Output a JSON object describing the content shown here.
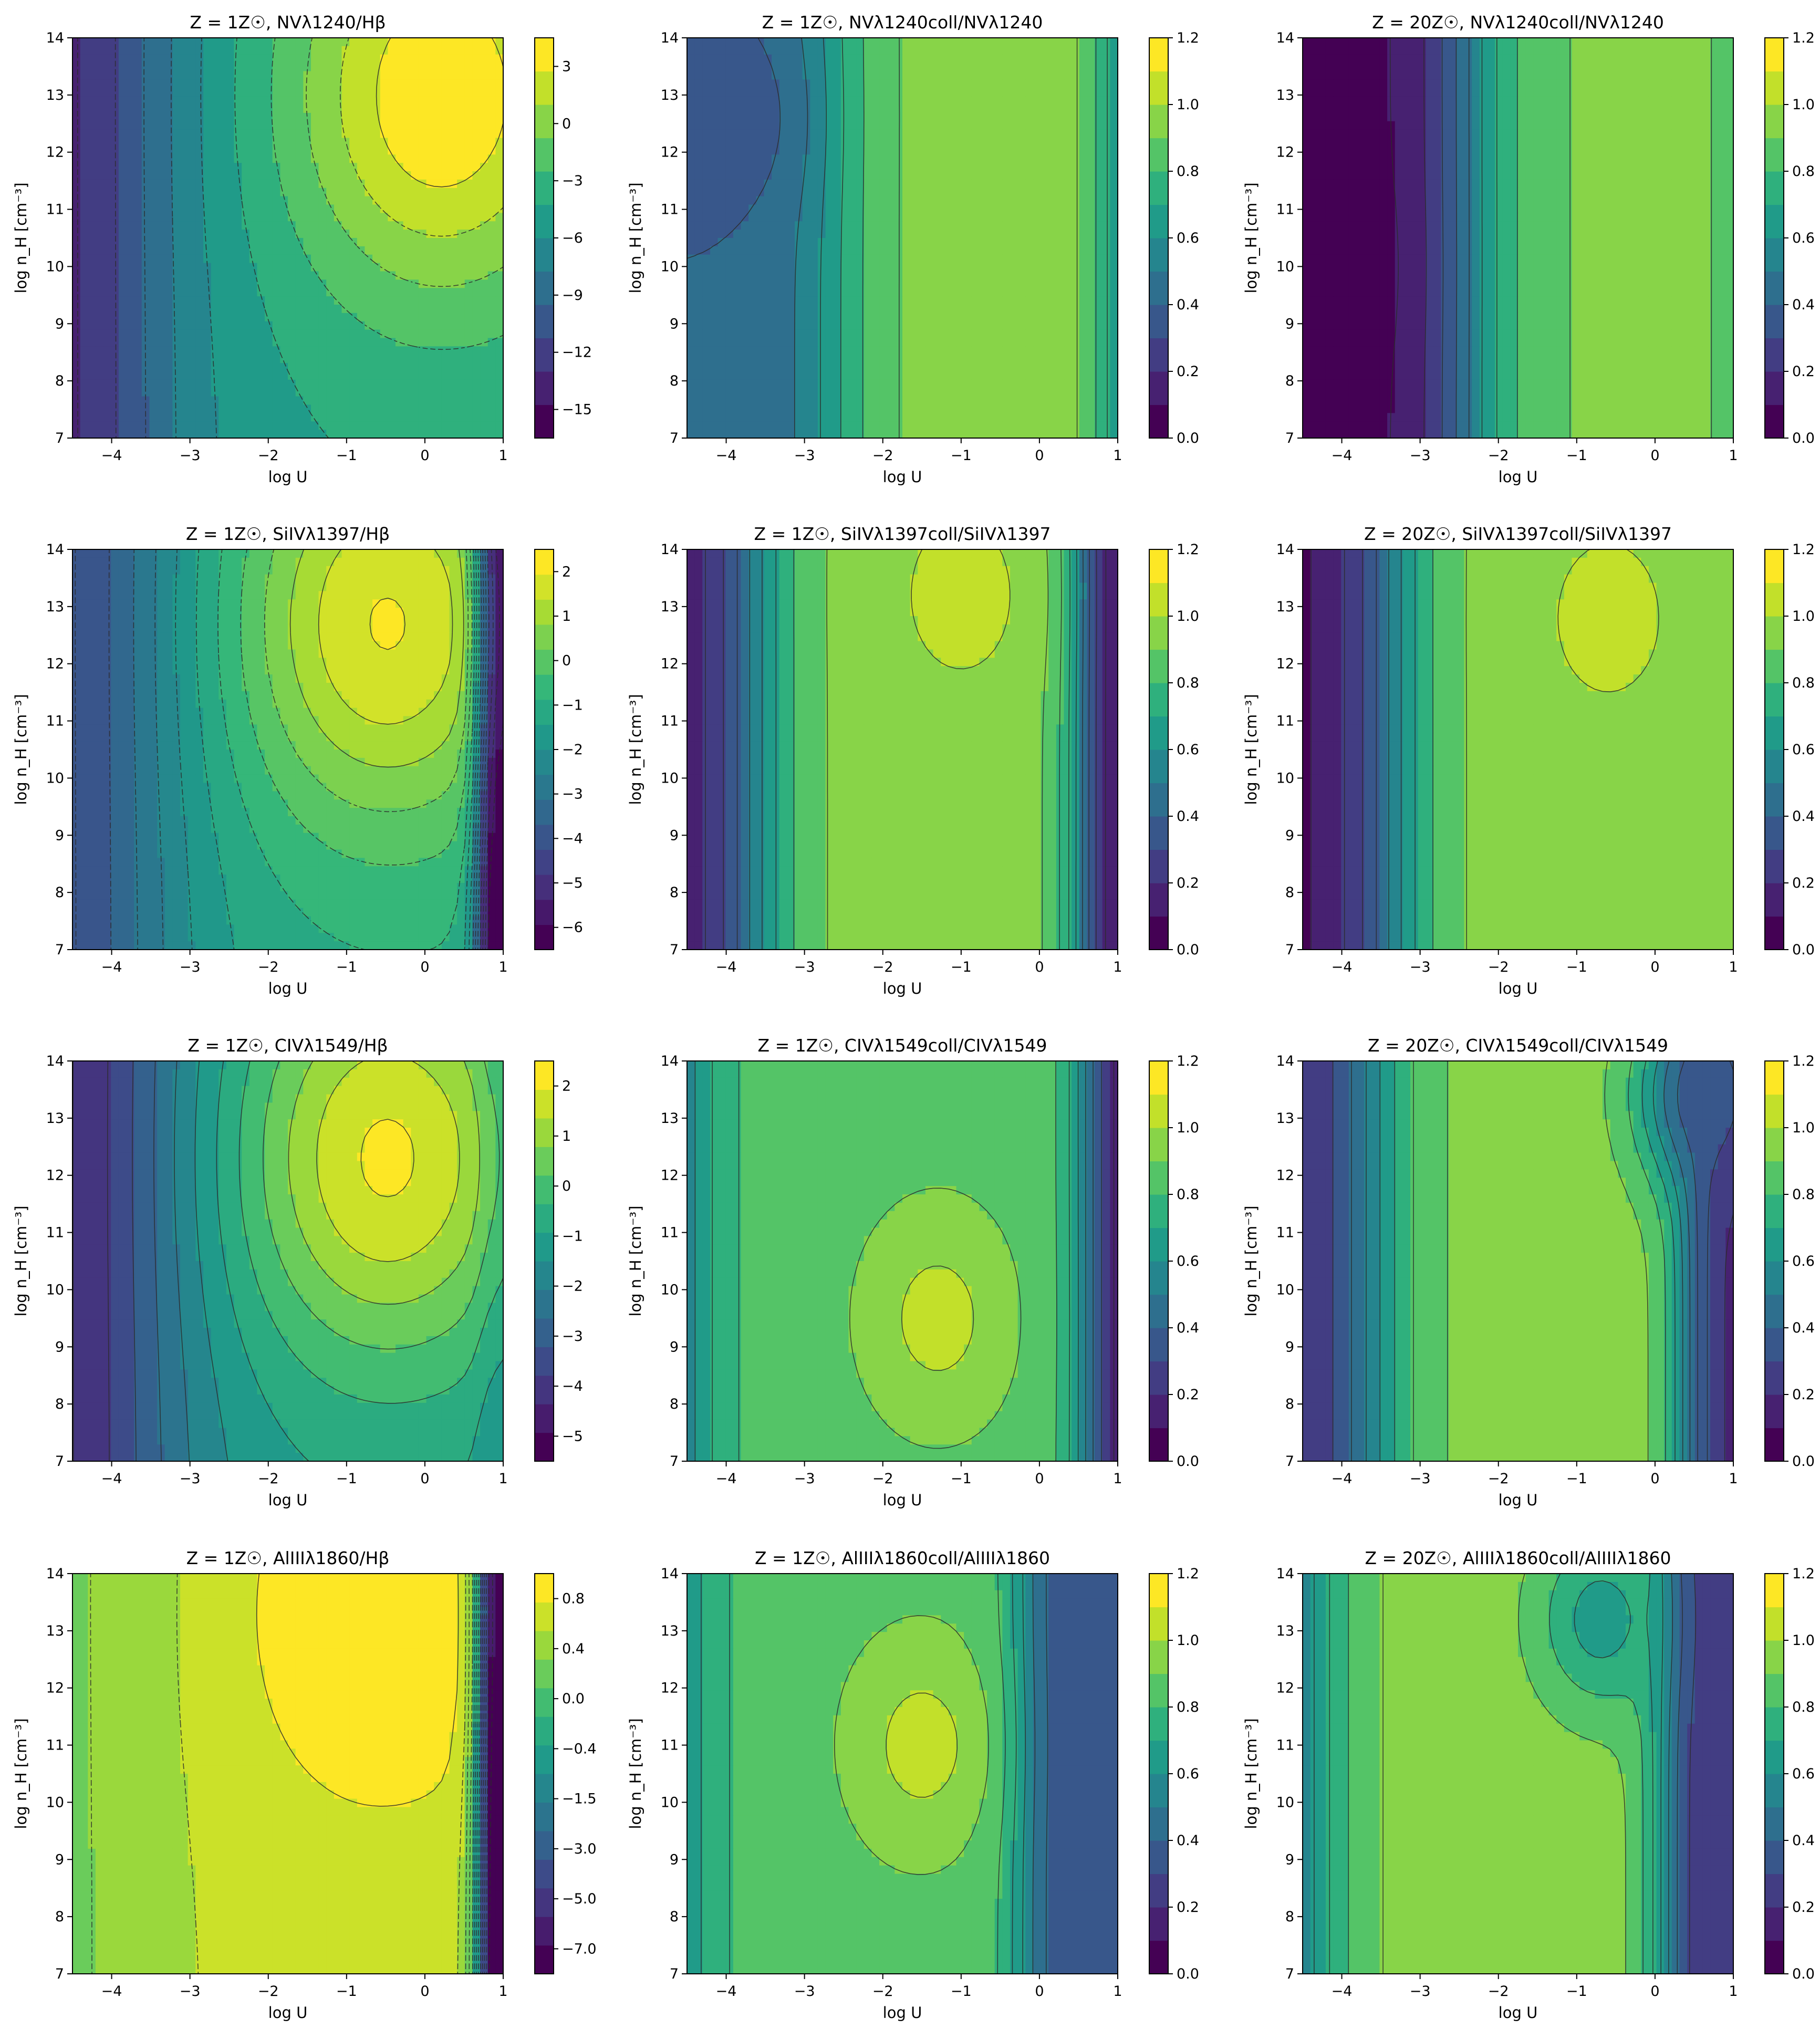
{
  "figure": {
    "colormap": "viridis",
    "colormap_stops": [
      "#440154",
      "#482878",
      "#3e4989",
      "#31688e",
      "#26828e",
      "#1f9e89",
      "#35b779",
      "#6ece58",
      "#b5de2b",
      "#fde725"
    ],
    "frame_color": "#000000",
    "contour_line_color": "#2b2b2b"
  },
  "chart_data": [
    {
      "type": "contour",
      "title": "Z = 1Z☉, NVλ1240/Hβ",
      "xlabel": "log U",
      "ylabel": "log n_H [cm⁻³]",
      "xlim": [
        -4.5,
        1
      ],
      "ylim": [
        7,
        14
      ],
      "xticks": [
        "−4",
        "−3",
        "−2",
        "−1",
        "0",
        "1"
      ],
      "yticks": [
        "7",
        "8",
        "9",
        "10",
        "11",
        "12",
        "13",
        "14"
      ],
      "levels": [
        -16.5,
        3
      ],
      "colorbar_ticks": [
        "3",
        "0",
        "−3",
        "−6",
        "−9",
        "−12",
        "−15"
      ],
      "colorbar_values": [
        3,
        0,
        -3,
        -6,
        -9,
        -12,
        -15
      ],
      "dashed_negative": true,
      "field": {
        "kind": "ratio_hb",
        "edge": -15,
        "peak": 2.6,
        "peak_x": 0.2,
        "peak_y": 13.0,
        "edge_y": 11.0,
        "falloff_right": 0.0
      }
    },
    {
      "type": "contour",
      "title": "Z = 1Z☉, NVλ1240coll/NVλ1240",
      "xlabel": "log U",
      "ylabel": "log n_H [cm⁻³]",
      "xlim": [
        -4.5,
        1
      ],
      "ylim": [
        7,
        14
      ],
      "xticks": [
        "−4",
        "−3",
        "−2",
        "−1",
        "0",
        "1"
      ],
      "yticks": [
        "7",
        "8",
        "9",
        "10",
        "11",
        "12",
        "13",
        "14"
      ],
      "levels": [
        0,
        1.2
      ],
      "colorbar_ticks": [
        "1.2",
        "1.0",
        "0.8",
        "0.6",
        "0.4",
        "0.2",
        "0.0"
      ],
      "colorbar_values": [
        1.2,
        1.0,
        0.8,
        0.6,
        0.4,
        0.2,
        0.0
      ],
      "dashed_negative": false,
      "field": {
        "kind": "coll",
        "low": 0.4,
        "plateau": 0.95,
        "rise_x": -2.6,
        "fall_x": 0.9,
        "blob_x": -3.9,
        "blob_y": 12.6,
        "blob_v": 0.35
      }
    },
    {
      "type": "contour",
      "title": "Z = 20Z☉, NVλ1240coll/NVλ1240",
      "xlabel": "log U",
      "ylabel": "log n_H [cm⁻³]",
      "xlim": [
        -4.5,
        1
      ],
      "ylim": [
        7,
        14
      ],
      "xticks": [
        "−4",
        "−3",
        "−2",
        "−1",
        "0",
        "1"
      ],
      "yticks": [
        "7",
        "8",
        "9",
        "10",
        "11",
        "12",
        "13",
        "14"
      ],
      "levels": [
        0,
        1.2
      ],
      "colorbar_ticks": [
        "1.2",
        "1.0",
        "0.8",
        "0.6",
        "0.4",
        "0.2",
        "0.0"
      ],
      "colorbar_values": [
        1.2,
        1.0,
        0.8,
        0.6,
        0.4,
        0.2,
        0.0
      ],
      "dashed_negative": false,
      "field": {
        "kind": "coll",
        "low": 0.05,
        "plateau": 0.92,
        "rise_x": -2.4,
        "fall_x": 1.4,
        "blob_x": -4.2,
        "blob_y": 10.0,
        "blob_v": 0.05
      }
    },
    {
      "type": "contour",
      "title": "Z = 1Z☉, SiIVλ1397/Hβ",
      "xlabel": "log U",
      "ylabel": "log n_H [cm⁻³]",
      "xlim": [
        -4.5,
        1
      ],
      "ylim": [
        7,
        14
      ],
      "xticks": [
        "−4",
        "−3",
        "−2",
        "−1",
        "0",
        "1"
      ],
      "yticks": [
        "7",
        "8",
        "9",
        "10",
        "11",
        "12",
        "13",
        "14"
      ],
      "levels": [
        -6.5,
        2
      ],
      "colorbar_ticks": [
        "2",
        "1",
        "0",
        "−1",
        "−2",
        "−3",
        "−4",
        "−5",
        "−6"
      ],
      "colorbar_values": [
        2,
        1,
        0,
        -1,
        -2,
        -3,
        -4,
        -5,
        -6
      ],
      "dashed_negative": true,
      "field": {
        "kind": "ratio_hb",
        "edge": -5,
        "peak": 1.5,
        "peak_x": -0.5,
        "peak_y": 12.7,
        "edge_y": 10.5,
        "falloff_right": 6.0
      }
    },
    {
      "type": "contour",
      "title": "Z = 1Z☉, SiIVλ1397coll/SiIVλ1397",
      "xlabel": "log U",
      "ylabel": "log n_H [cm⁻³]",
      "xlim": [
        -4.5,
        1
      ],
      "ylim": [
        7,
        14
      ],
      "xticks": [
        "−4",
        "−3",
        "−2",
        "−1",
        "0",
        "1"
      ],
      "yticks": [
        "7",
        "8",
        "9",
        "10",
        "11",
        "12",
        "13",
        "14"
      ],
      "levels": [
        0,
        1.2
      ],
      "colorbar_ticks": [
        "1.2",
        "1.0",
        "0.8",
        "0.6",
        "0.4",
        "0.2",
        "0.0"
      ],
      "colorbar_values": [
        1.2,
        1.0,
        0.8,
        0.6,
        0.4,
        0.2,
        0.0
      ],
      "dashed_negative": false,
      "field": {
        "kind": "coll",
        "low": 0.05,
        "plateau": 0.95,
        "rise_x": -3.7,
        "fall_x": 0.55,
        "blob_x": -1.0,
        "blob_y": 13.2,
        "blob_v": 1.05
      }
    },
    {
      "type": "contour",
      "title": "Z = 20Z☉, SiIVλ1397coll/SiIVλ1397",
      "xlabel": "log U",
      "ylabel": "log n_H [cm⁻³]",
      "xlim": [
        -4.5,
        1
      ],
      "ylim": [
        7,
        14
      ],
      "xticks": [
        "−4",
        "−3",
        "−2",
        "−1",
        "0",
        "1"
      ],
      "yticks": [
        "7",
        "8",
        "9",
        "10",
        "11",
        "12",
        "13",
        "14"
      ],
      "levels": [
        0,
        1.2
      ],
      "colorbar_ticks": [
        "1.2",
        "1.0",
        "0.8",
        "0.6",
        "0.4",
        "0.2",
        "0.0"
      ],
      "colorbar_values": [
        1.2,
        1.0,
        0.8,
        0.6,
        0.4,
        0.2,
        0.0
      ],
      "dashed_negative": false,
      "field": {
        "kind": "coll",
        "low": 0.05,
        "plateau": 0.95,
        "rise_x": -3.4,
        "fall_x": 1.6,
        "blob_x": -0.6,
        "blob_y": 12.8,
        "blob_v": 1.05
      }
    },
    {
      "type": "contour",
      "title": "Z = 1Z☉, CIVλ1549/Hβ",
      "xlabel": "log U",
      "ylabel": "log n_H [cm⁻³]",
      "xlim": [
        -4.5,
        1
      ],
      "ylim": [
        7,
        14
      ],
      "xticks": [
        "−4",
        "−3",
        "−2",
        "−1",
        "0",
        "1"
      ],
      "yticks": [
        "7",
        "8",
        "9",
        "10",
        "11",
        "12",
        "13",
        "14"
      ],
      "levels": [
        -5.5,
        2.5
      ],
      "colorbar_ticks": [
        "2",
        "1",
        "0",
        "−1",
        "−2",
        "−3",
        "−4",
        "−5"
      ],
      "colorbar_values": [
        2,
        1,
        0,
        -1,
        -2,
        -3,
        -4,
        -5
      ],
      "dashed_negative": false,
      "field": {
        "kind": "ratio_hb",
        "edge": -5,
        "peak": 2.0,
        "peak_x": -0.5,
        "peak_y": 12.3,
        "edge_y": 10.8,
        "falloff_right": 0.5
      }
    },
    {
      "type": "contour",
      "title": "Z = 1Z☉, CIVλ1549coll/CIVλ1549",
      "xlabel": "log U",
      "ylabel": "log n_H [cm⁻³]",
      "xlim": [
        -4.5,
        1
      ],
      "ylim": [
        7,
        14
      ],
      "xticks": [
        "−4",
        "−3",
        "−2",
        "−1",
        "0",
        "1"
      ],
      "yticks": [
        "7",
        "8",
        "9",
        "10",
        "11",
        "12",
        "13",
        "14"
      ],
      "levels": [
        0,
        1.2
      ],
      "colorbar_ticks": [
        "1.2",
        "1.0",
        "0.8",
        "0.6",
        "0.4",
        "0.2",
        "0.0"
      ],
      "colorbar_values": [
        1.2,
        1.0,
        0.8,
        0.6,
        0.4,
        0.2,
        0.0
      ],
      "dashed_negative": false,
      "field": {
        "kind": "coll",
        "low": 0.1,
        "plateau": 0.88,
        "rise_x": -4.6,
        "fall_x": 0.6,
        "blob_x": -1.3,
        "blob_y": 9.5,
        "blob_v": 1.05
      }
    },
    {
      "type": "contour",
      "title": "Z = 20Z☉, CIVλ1549coll/CIVλ1549",
      "xlabel": "log U",
      "ylabel": "log n_H [cm⁻³]",
      "xlim": [
        -4.5,
        1
      ],
      "ylim": [
        7,
        14
      ],
      "xticks": [
        "−4",
        "−3",
        "−2",
        "−1",
        "0",
        "1"
      ],
      "yticks": [
        "7",
        "8",
        "9",
        "10",
        "11",
        "12",
        "13",
        "14"
      ],
      "levels": [
        0,
        1.2
      ],
      "colorbar_ticks": [
        "1.2",
        "1.0",
        "0.8",
        "0.6",
        "0.4",
        "0.2",
        "0.0"
      ],
      "colorbar_values": [
        1.2,
        1.0,
        0.8,
        0.6,
        0.4,
        0.2,
        0.0
      ],
      "dashed_negative": false,
      "field": {
        "kind": "coll",
        "low": 0.15,
        "plateau": 0.95,
        "rise_x": -3.6,
        "fall_x": 0.4,
        "blob_x": 0.6,
        "blob_y": 13.4,
        "blob_v": 0.35
      }
    },
    {
      "type": "contour",
      "title": "Z = 1Z☉, AlIIIλ1860/Hβ",
      "xlabel": "log U",
      "ylabel": "log n_H [cm⁻³]",
      "xlim": [
        -4.5,
        1
      ],
      "ylim": [
        7,
        14
      ],
      "xticks": [
        "−4",
        "−3",
        "−2",
        "−1",
        "0",
        "1"
      ],
      "yticks": [
        "7",
        "8",
        "9",
        "10",
        "11",
        "12",
        "13",
        "14"
      ],
      "levels": [
        -8,
        1
      ],
      "colorbar_ticks": [
        "0.8",
        "0.4",
        "0.0",
        "−0.4",
        "−1.5",
        "−3.0",
        "−5.0",
        "−7.0"
      ],
      "colorbar_values": [
        0.8,
        0.4,
        0.0,
        -0.4,
        -1.5,
        -3.0,
        -5.0,
        -7.0
      ],
      "dashed_negative": true,
      "field": {
        "kind": "ratio_hb",
        "edge": -1.2,
        "peak": 0.9,
        "peak_x": -0.6,
        "peak_y": 13.3,
        "edge_y": 10.5,
        "falloff_right": 9.0
      }
    },
    {
      "type": "contour",
      "title": "Z = 1Z☉, AlIIIλ1860coll/AlIIIλ1860",
      "xlabel": "log U",
      "ylabel": "log n_H [cm⁻³]",
      "xlim": [
        -4.5,
        1
      ],
      "ylim": [
        7,
        14
      ],
      "xticks": [
        "−4",
        "−3",
        "−2",
        "−1",
        "0",
        "1"
      ],
      "yticks": [
        "7",
        "8",
        "9",
        "10",
        "11",
        "12",
        "13",
        "14"
      ],
      "levels": [
        0,
        1.2
      ],
      "colorbar_ticks": [
        "1.2",
        "1.0",
        "0.8",
        "0.6",
        "0.4",
        "0.2",
        "0.0"
      ],
      "colorbar_values": [
        1.2,
        1.0,
        0.8,
        0.6,
        0.4,
        0.2,
        0.0
      ],
      "dashed_negative": false,
      "field": {
        "kind": "coll",
        "low": 0.3,
        "plateau": 0.88,
        "rise_x": -4.6,
        "fall_x": -0.2,
        "blob_x": -1.5,
        "blob_y": 11.0,
        "blob_v": 1.05
      }
    },
    {
      "type": "contour",
      "title": "Z = 20Z☉, AlIIIλ1860coll/AlIIIλ1860",
      "xlabel": "log U",
      "ylabel": "log n_H [cm⁻³]",
      "xlim": [
        -4.5,
        1
      ],
      "ylim": [
        7,
        14
      ],
      "xticks": [
        "−4",
        "−3",
        "−2",
        "−1",
        "0",
        "1"
      ],
      "yticks": [
        "7",
        "8",
        "9",
        "10",
        "11",
        "12",
        "13",
        "14"
      ],
      "levels": [
        0,
        1.2
      ],
      "colorbar_ticks": [
        "1.2",
        "1.0",
        "0.8",
        "0.6",
        "0.4",
        "0.2",
        "0.0"
      ],
      "colorbar_values": [
        1.2,
        1.0,
        0.8,
        0.6,
        0.4,
        0.2,
        0.0
      ],
      "dashed_negative": false,
      "field": {
        "kind": "coll",
        "low": 0.2,
        "plateau": 0.95,
        "rise_x": -4.4,
        "fall_x": 0.1,
        "blob_x": -0.7,
        "blob_y": 13.2,
        "blob_v": 0.65
      }
    }
  ]
}
